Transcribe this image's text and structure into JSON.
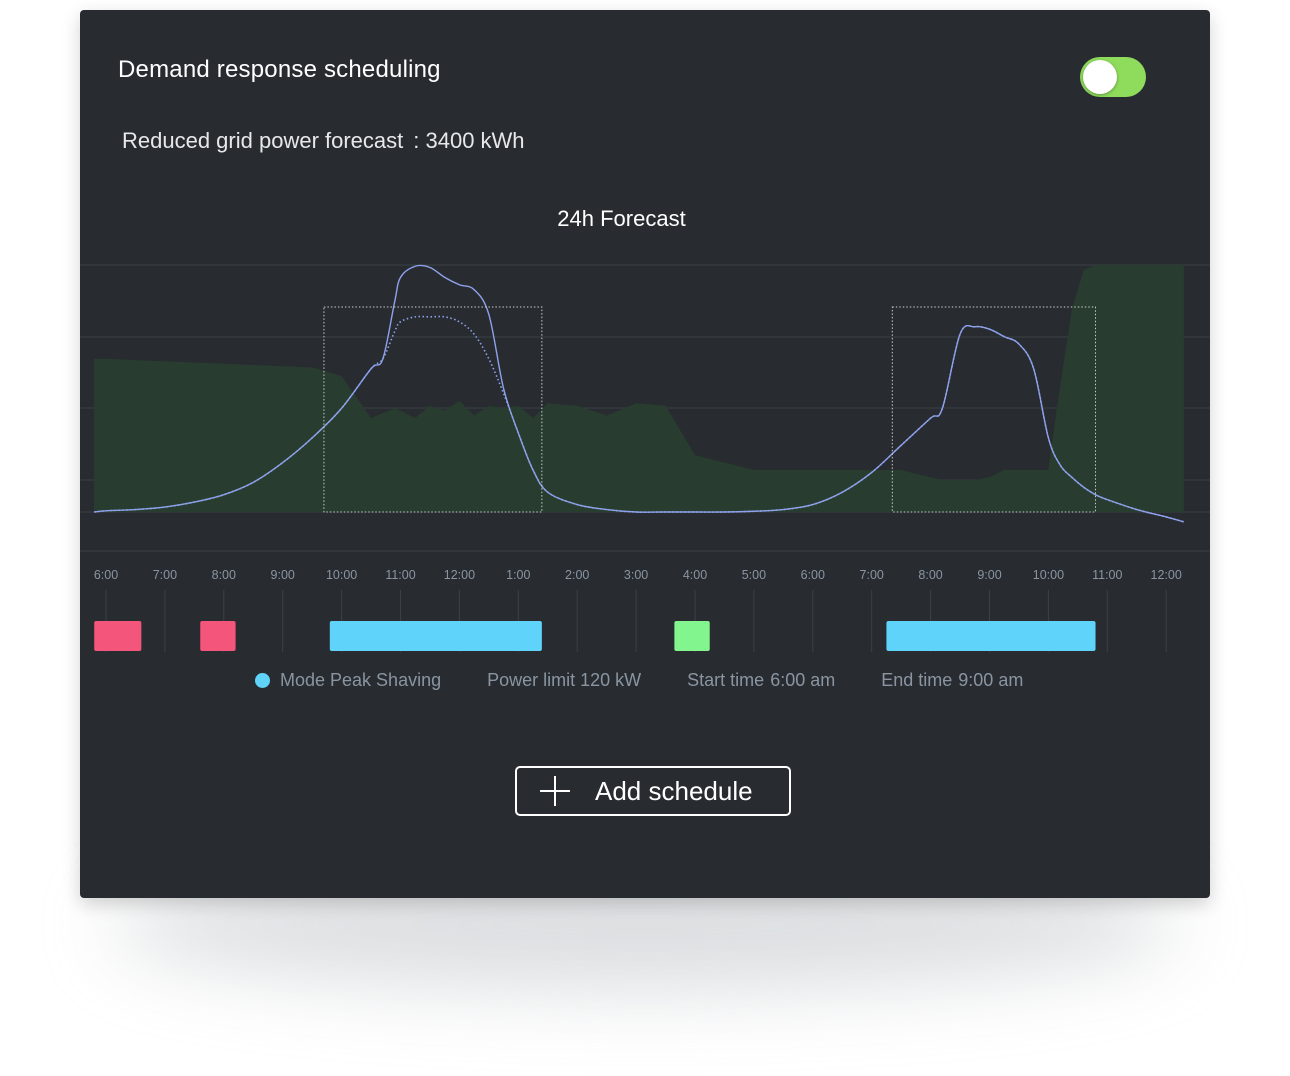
{
  "panel": {
    "title": "Demand response scheduling",
    "toggle_on": true,
    "forecast_label": "Reduced grid power forecast",
    "forecast_value": ": 3400 kWh"
  },
  "chart_data": {
    "type": "area",
    "title": "24h Forecast",
    "x_ticks": [
      "6:00",
      "7:00",
      "8:00",
      "9:00",
      "10:00",
      "11:00",
      "12:00",
      "1:00",
      "2:00",
      "3:00",
      "4:00",
      "5:00",
      "6:00",
      "7:00",
      "8:00",
      "9:00",
      "10:00",
      "11:00",
      "12:00"
    ],
    "hours": [
      5.8,
      6,
      6.5,
      7,
      7.5,
      8,
      8.5,
      9,
      9.5,
      10,
      10.5,
      10.7,
      10.9,
      11,
      11.25,
      11.5,
      11.75,
      12,
      12.25,
      12.5,
      12.75,
      13,
      13.25,
      13.5,
      14,
      14.5,
      15,
      15.5,
      16,
      16.5,
      17,
      17.5,
      18,
      18.5,
      19,
      19.5,
      20,
      20.2,
      20.5,
      20.75,
      21,
      21.25,
      21.5,
      21.75,
      22,
      22.2,
      22.4,
      22.6,
      22.8,
      23,
      23.5,
      24,
      24.3
    ],
    "series": [
      {
        "name": "",
        "style": "area",
        "values": [
          62,
          62,
          61.5,
          61,
          60.5,
          60,
          59.5,
          59,
          58.5,
          55,
          38,
          40,
          42,
          41,
          38,
          43,
          41,
          45,
          39,
          43,
          42,
          43,
          38,
          44,
          43,
          39,
          44,
          43,
          23,
          20,
          17,
          17,
          17,
          17,
          17,
          17,
          14,
          13,
          13,
          13,
          14,
          17,
          17,
          17,
          17,
          51,
          82,
          98,
          100,
          100,
          100,
          100,
          100
        ]
      },
      {
        "name": "",
        "style": "line",
        "values": [
          0,
          0.5,
          1,
          2,
          4,
          7,
          12,
          20,
          30,
          42,
          58,
          62,
          85,
          95,
          99.5,
          99,
          95,
          92,
          90,
          80,
          50,
          32,
          17,
          8,
          3,
          1,
          0,
          0,
          0,
          0,
          0.3,
          1,
          3,
          8,
          16,
          27,
          38,
          42,
          72,
          75,
          74,
          71,
          68,
          58,
          30,
          19,
          14,
          10,
          7,
          5,
          1,
          -2,
          -4
        ]
      },
      {
        "name": "",
        "style": "dotted",
        "values": [
          0,
          0.5,
          1,
          2,
          4,
          7,
          12,
          20,
          30,
          42,
          58,
          62,
          73,
          77,
          79,
          79,
          79,
          77,
          72,
          62,
          48,
          32,
          17,
          8,
          3,
          1,
          0,
          0,
          0,
          0,
          0.3,
          1,
          3,
          8,
          16,
          27,
          38,
          42,
          72,
          75,
          74,
          71,
          68,
          58,
          30,
          19,
          14,
          10,
          7,
          5,
          1,
          -2,
          -4
        ]
      }
    ],
    "highlight_ranges": [
      [
        9.7,
        13.4
      ],
      [
        19.35,
        22.8
      ]
    ],
    "schedule_blocks": [
      {
        "start": 5.8,
        "end": 6.6,
        "color": "#f4557a"
      },
      {
        "start": 7.6,
        "end": 8.2,
        "color": "#f4557a"
      },
      {
        "start": 9.8,
        "end": 13.4,
        "color": "#5fd3f9"
      },
      {
        "start": 15.65,
        "end": 16.25,
        "color": "#82f58f"
      },
      {
        "start": 19.25,
        "end": 22.8,
        "color": "#5fd3f9"
      }
    ],
    "ylim": [
      -5,
      105
    ],
    "grid": true
  },
  "legend": {
    "mode_label": "Mode Peak Shaving",
    "power_limit": "Power limit 120 kW",
    "start_label": "Start time",
    "start_value": "6:00 am",
    "end_label": "End time",
    "end_value": "9:00 am",
    "dot_color": "#5fd3f9"
  },
  "add_button": {
    "label": "Add schedule"
  },
  "colors": {
    "panel_bg": "#282c31",
    "area_fill": "#283d2f",
    "line": "#8ea2ec",
    "toggle": "#8fdc5c"
  }
}
